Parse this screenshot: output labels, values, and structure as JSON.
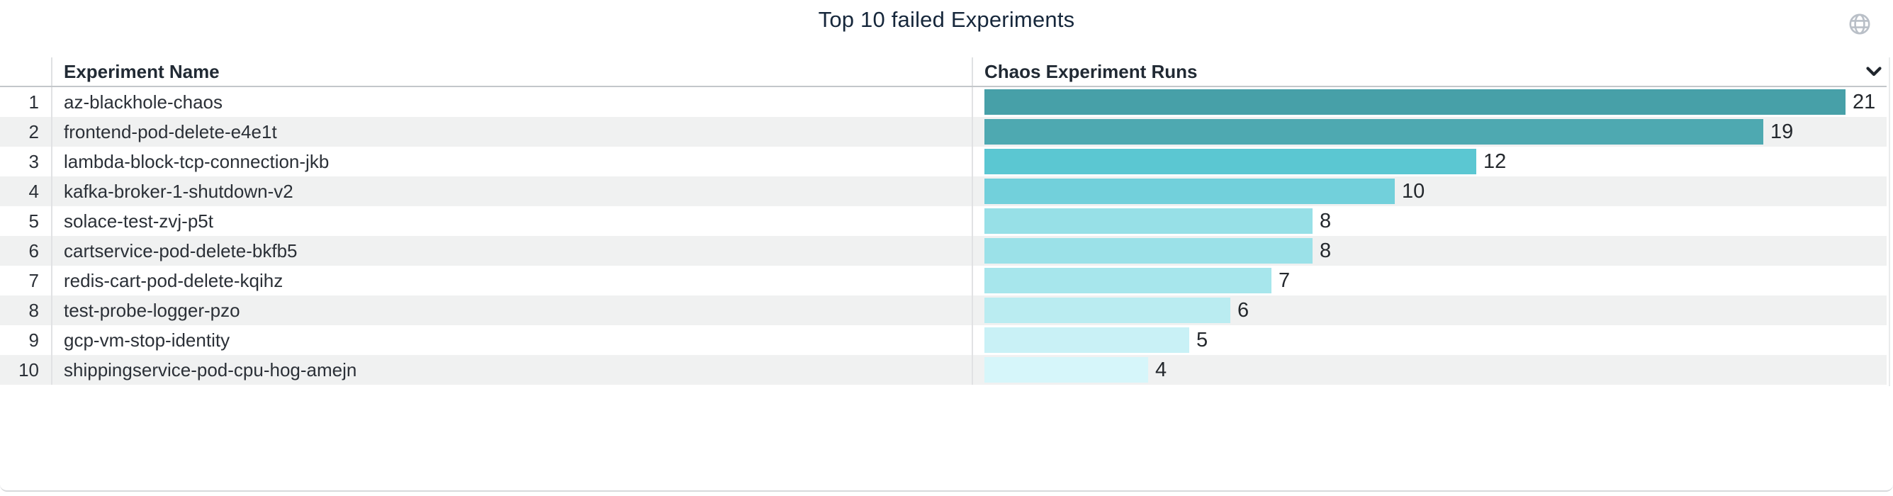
{
  "panel": {
    "title": "Top 10 failed Experiments",
    "globe_icon": "globe-icon",
    "column_menu_icon": "chevron-down-icon"
  },
  "table": {
    "columns": [
      "Experiment Name",
      "Chaos Experiment Runs"
    ],
    "rows": [
      {
        "rank": 1,
        "name": "az-blackhole-chaos",
        "runs": 21,
        "bar_color": "#47a0a8"
      },
      {
        "rank": 2,
        "name": "frontend-pod-delete-e4e1t",
        "runs": 19,
        "bar_color": "#4ea9b1"
      },
      {
        "rank": 3,
        "name": "lambda-block-tcp-connection-jkb",
        "runs": 12,
        "bar_color": "#5bc7d2"
      },
      {
        "rank": 4,
        "name": "kafka-broker-1-shutdown-v2",
        "runs": 10,
        "bar_color": "#72d0db"
      },
      {
        "rank": 5,
        "name": "solace-test-zvj-p5t",
        "runs": 8,
        "bar_color": "#97e0e7"
      },
      {
        "rank": 6,
        "name": "cartservice-pod-delete-bkfb5",
        "runs": 8,
        "bar_color": "#9be1e8"
      },
      {
        "rank": 7,
        "name": "redis-cart-pod-delete-kqihz",
        "runs": 7,
        "bar_color": "#a7e6ec"
      },
      {
        "rank": 8,
        "name": "test-probe-logger-pzo",
        "runs": 6,
        "bar_color": "#baecf1"
      },
      {
        "rank": 9,
        "name": "gcp-vm-stop-identity",
        "runs": 5,
        "bar_color": "#c9f1f6"
      },
      {
        "rank": 10,
        "name": "shippingservice-pod-cpu-hog-amejn",
        "runs": 4,
        "bar_color": "#d6f6fa"
      }
    ]
  },
  "chart_data": {
    "type": "bar",
    "orientation": "horizontal",
    "title": "Top 10 failed Experiments",
    "categories": [
      "az-blackhole-chaos",
      "frontend-pod-delete-e4e1t",
      "lambda-block-tcp-connection-jkb",
      "kafka-broker-1-shutdown-v2",
      "solace-test-zvj-p5t",
      "cartservice-pod-delete-bkfb5",
      "redis-cart-pod-delete-kqihz",
      "test-probe-logger-pzo",
      "gcp-vm-stop-identity",
      "shippingservice-pod-cpu-hog-amejn"
    ],
    "values": [
      21,
      19,
      12,
      10,
      8,
      8,
      7,
      6,
      5,
      4
    ],
    "xlabel": "Chaos Experiment Runs",
    "ylabel": "Experiment Name",
    "xlim": [
      0,
      22
    ],
    "grid": false,
    "legend": false,
    "data_labels": true,
    "bar_colors": [
      "#47a0a8",
      "#4ea9b1",
      "#5bc7d2",
      "#72d0db",
      "#97e0e7",
      "#9be1e8",
      "#a7e6ec",
      "#baecf1",
      "#c9f1f6",
      "#d6f6fa"
    ]
  },
  "colors": {
    "title": "#16273b",
    "header_text": "#212a34",
    "row_text": "#2b3037",
    "stripe": "#f0f1f1",
    "divider": "#e1e2e4",
    "header_underline": "#c3c7ca",
    "globe_icon": "#b9bfc7",
    "chevron_icon": "#20262d"
  }
}
